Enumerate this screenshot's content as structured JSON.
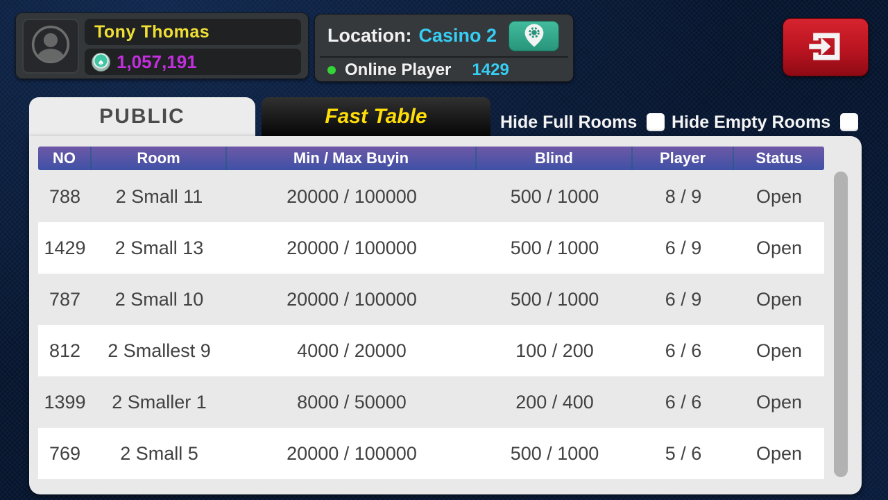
{
  "player": {
    "name": "Tony Thomas",
    "chips": "1,057,191"
  },
  "location": {
    "label": "Location:",
    "value": "Casino 2",
    "online_label": "Online Player",
    "online_count": "1429"
  },
  "tabs": [
    {
      "label": "PUBLIC",
      "active": true
    },
    {
      "label": "Fast Table",
      "active": false
    }
  ],
  "filters": [
    {
      "label": "Hide Full Rooms",
      "checked": false
    },
    {
      "label": "Hide Empty Rooms",
      "checked": false
    }
  ],
  "table": {
    "columns": [
      "NO",
      "Room",
      "Min / Max Buyin",
      "Blind",
      "Player",
      "Status"
    ],
    "column_keys": [
      "no",
      "room",
      "buyin",
      "blind",
      "player",
      "status"
    ],
    "rows": [
      [
        "788",
        "2 Small 11",
        "20000 / 100000",
        "500 / 1000",
        "8 / 9",
        "Open"
      ],
      [
        "1429",
        "2 Small 13",
        "20000 / 100000",
        "500 / 1000",
        "6 / 9",
        "Open"
      ],
      [
        "787",
        "2 Small 10",
        "20000 / 100000",
        "500 / 1000",
        "6 / 9",
        "Open"
      ],
      [
        "812",
        "2 Smallest 9",
        "4000 / 20000",
        "100 / 200",
        "6 / 6",
        "Open"
      ],
      [
        "1399",
        "2 Smaller 1",
        "8000 / 50000",
        "200 / 400",
        "6 / 6",
        "Open"
      ],
      [
        "769",
        "2 Small 5",
        "20000 / 100000",
        "500 / 1000",
        "5 / 6",
        "Open"
      ]
    ]
  },
  "icons": {
    "avatar": "person-icon",
    "chips": "poker-chip-spade-icon",
    "location_button": "map-pin-gear-icon",
    "exit_button": "exit-arrow-icon",
    "chip_glyph": "♠"
  },
  "colors": {
    "background": "#0c1d3a",
    "hud_panel": "#33373a",
    "name_yellow": "#f0df35",
    "chips_magenta": "#c32ede",
    "cyan": "#36cef4",
    "online_green": "#34d336",
    "teal_button": "#2fae8d",
    "exit_red": "#b91420",
    "tab_yellow": "#ffdd08",
    "header_purple_top": "#6e58a7",
    "header_purple_bottom": "#3f51a6",
    "panel_gray": "#e9e9e9",
    "row_white": "#ffffff",
    "scrollbar_gray": "#b2b2b2"
  }
}
